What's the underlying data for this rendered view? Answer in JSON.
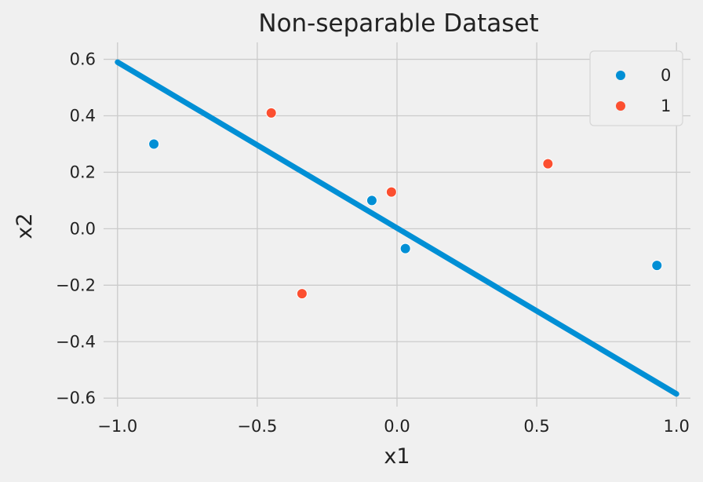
{
  "chart_data": {
    "type": "scatter",
    "title": "Non-separable Dataset",
    "xlabel": "x1",
    "ylabel": "x2",
    "xlim": [
      -1.05,
      1.05
    ],
    "ylim": [
      -0.63,
      0.66
    ],
    "xticks": [
      -1.0,
      -0.5,
      0.0,
      0.5,
      1.0
    ],
    "xtick_labels": [
      "−1.0",
      "−0.5",
      "0.0",
      "0.5",
      "1.0"
    ],
    "yticks": [
      0.6,
      0.4,
      0.2,
      0.0,
      -0.2,
      -0.4,
      -0.6
    ],
    "ytick_labels": [
      "0.6",
      "0.4",
      "0.2",
      "0.0",
      "−0.2",
      "−0.4",
      "−0.6"
    ],
    "grid": true,
    "legend_position": "top-right",
    "series": [
      {
        "name": "0",
        "color": "#008fd5",
        "points": [
          {
            "x": -0.87,
            "y": 0.3
          },
          {
            "x": -0.09,
            "y": 0.1
          },
          {
            "x": 0.03,
            "y": -0.07
          },
          {
            "x": 0.93,
            "y": -0.13
          }
        ]
      },
      {
        "name": "1",
        "color": "#fc4f30",
        "points": [
          {
            "x": -0.45,
            "y": 0.41
          },
          {
            "x": -0.34,
            "y": -0.23
          },
          {
            "x": -0.02,
            "y": 0.13
          },
          {
            "x": 0.54,
            "y": 0.23
          }
        ]
      }
    ],
    "line": {
      "color": "#008fd5",
      "points": [
        {
          "x": -1.0,
          "y": 0.59
        },
        {
          "x": 1.0,
          "y": -0.585
        }
      ]
    }
  }
}
